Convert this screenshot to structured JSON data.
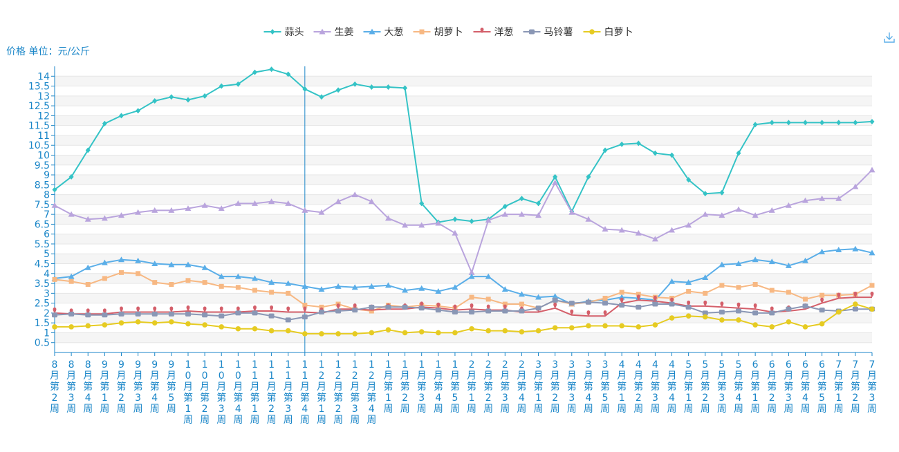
{
  "unit_label": "价格 单位：元/公斤",
  "chart_data": {
    "type": "line",
    "ylabel": "价格 单位：元/公斤",
    "ylim": [
      0,
      14.5
    ],
    "y_ticks": [
      0.5,
      1,
      1.5,
      2,
      2.5,
      3,
      3.5,
      4,
      4.5,
      5,
      5.5,
      6,
      6.5,
      7,
      7.5,
      8,
      8.5,
      9,
      9.5,
      10,
      10.5,
      11,
      11.5,
      12,
      12.5,
      13,
      13.5,
      14
    ],
    "y_tick_labels": [
      "0.5",
      "1",
      "1.5",
      "2",
      "2.5",
      "3",
      "3.5",
      "4",
      "4.5",
      "5",
      "5.5",
      "6",
      "6.5",
      "7",
      "7.5",
      "8",
      "8.5",
      "9",
      "9.5",
      "10",
      "10.5",
      "11",
      "11.5",
      "12",
      "12.5",
      "13",
      "13.5",
      "14"
    ],
    "grid": true,
    "legend_position": "top-center",
    "highlight_category": "11月第4周",
    "categories": [
      "8月第2周",
      "8月第3周",
      "8月第4周",
      "9月第1周",
      "9月第2周",
      "9月第3周",
      "9月第4周",
      "9月第5周",
      "10月第1周",
      "10月第2周",
      "10月第3周",
      "10月第4周",
      "11月第1周",
      "11月第2周",
      "11月第3周",
      "11月第4周",
      "12月第1周",
      "12月第2周",
      "12月第3周",
      "12月第4周",
      "1月第1周",
      "1月第2周",
      "1月第3周",
      "1月第4周",
      "1月第5周",
      "2月第1周",
      "2月第2周",
      "2月第3周",
      "2月第4周",
      "3月第1周",
      "3月第2周",
      "3月第3周",
      "3月第4周",
      "3月第5周",
      "4月第1周",
      "4月第2周",
      "4月第3周",
      "4月第4周",
      "5月第1周",
      "5月第2周",
      "5月第3周",
      "5月第4周",
      "6月第1周",
      "6月第2周",
      "6月第3周",
      "6月第4周",
      "6月第5周",
      "7月第1周",
      "7月第2周",
      "7月第3周"
    ],
    "series": [
      {
        "name": "蒜头",
        "color": "#34c3c6",
        "marker": "diamond",
        "values": [
          8.25,
          8.9,
          10.25,
          11.6,
          12.0,
          12.25,
          12.75,
          12.95,
          12.8,
          13.0,
          13.5,
          13.6,
          14.2,
          14.35,
          14.1,
          13.35,
          12.95,
          13.3,
          13.6,
          13.45,
          13.45,
          13.4,
          7.55,
          6.6,
          6.75,
          6.65,
          6.75,
          7.4,
          7.8,
          7.55,
          8.9,
          7.15,
          8.9,
          10.25,
          10.55,
          10.6,
          10.1,
          10.0,
          8.75,
          8.05,
          8.1,
          10.1,
          11.55,
          11.65,
          11.65,
          11.65,
          11.65,
          11.65,
          11.65,
          11.7
        ]
      },
      {
        "name": "生姜",
        "color": "#b9a4dd",
        "marker": "triangle",
        "values": [
          7.45,
          7.0,
          6.75,
          6.8,
          6.95,
          7.1,
          7.2,
          7.2,
          7.3,
          7.45,
          7.3,
          7.55,
          7.55,
          7.65,
          7.55,
          7.2,
          7.1,
          7.65,
          8.0,
          7.65,
          6.8,
          6.45,
          6.45,
          6.55,
          6.05,
          4.05,
          6.7,
          7.0,
          7.0,
          6.95,
          8.6,
          7.1,
          6.75,
          6.25,
          6.2,
          6.05,
          5.75,
          6.2,
          6.45,
          7.0,
          6.95,
          7.25,
          6.95,
          7.2,
          7.45,
          7.7,
          7.8,
          7.8,
          8.4,
          9.25
        ]
      },
      {
        "name": "大葱",
        "color": "#5aaee8",
        "marker": "triangle",
        "values": [
          3.75,
          3.85,
          4.3,
          4.55,
          4.7,
          4.65,
          4.5,
          4.45,
          4.45,
          4.3,
          3.85,
          3.85,
          3.75,
          3.55,
          3.5,
          3.35,
          3.2,
          3.35,
          3.3,
          3.35,
          3.4,
          3.15,
          3.25,
          3.1,
          3.3,
          3.85,
          3.85,
          3.2,
          2.95,
          2.8,
          2.85,
          2.45,
          2.6,
          2.65,
          2.8,
          2.75,
          2.65,
          3.6,
          3.55,
          3.8,
          4.45,
          4.5,
          4.7,
          4.6,
          4.4,
          4.65,
          5.1,
          5.2,
          5.25,
          5.05
        ]
      },
      {
        "name": "胡萝卜",
        "color": "#f7b883",
        "marker": "square",
        "values": [
          3.7,
          3.6,
          3.45,
          3.75,
          4.05,
          4.0,
          3.55,
          3.45,
          3.65,
          3.55,
          3.35,
          3.3,
          3.15,
          3.05,
          3.0,
          2.4,
          2.3,
          2.45,
          2.2,
          2.1,
          2.4,
          2.3,
          2.4,
          2.35,
          2.25,
          2.8,
          2.7,
          2.45,
          2.45,
          2.25,
          2.65,
          2.45,
          2.55,
          2.75,
          3.05,
          2.95,
          2.8,
          2.75,
          3.1,
          3.0,
          3.4,
          3.3,
          3.45,
          3.15,
          3.05,
          2.7,
          2.9,
          2.9,
          2.95,
          3.4
        ]
      },
      {
        "name": "洋葱",
        "color": "#d45f6a",
        "marker": "pin",
        "values": [
          2.0,
          1.95,
          1.95,
          1.95,
          2.05,
          2.05,
          2.05,
          2.05,
          2.1,
          2.05,
          2.05,
          2.05,
          2.1,
          2.1,
          2.05,
          2.05,
          2.0,
          2.2,
          2.2,
          2.15,
          2.2,
          2.2,
          2.3,
          2.25,
          2.15,
          2.2,
          2.15,
          2.15,
          2.05,
          2.05,
          2.25,
          1.9,
          1.85,
          1.85,
          2.5,
          2.65,
          2.6,
          2.5,
          2.35,
          2.35,
          2.3,
          2.25,
          2.2,
          2.05,
          2.1,
          2.2,
          2.5,
          2.75,
          2.8,
          2.8
        ]
      },
      {
        "name": "马铃薯",
        "color": "#8a97b5",
        "marker": "roundrect",
        "values": [
          1.9,
          1.95,
          1.9,
          1.9,
          1.95,
          1.95,
          1.95,
          1.95,
          1.95,
          1.9,
          1.85,
          2.0,
          2.0,
          1.85,
          1.65,
          1.8,
          2.05,
          2.1,
          2.15,
          2.3,
          2.3,
          2.3,
          2.25,
          2.15,
          2.05,
          2.05,
          2.1,
          2.1,
          2.1,
          2.25,
          2.65,
          2.5,
          2.55,
          2.5,
          2.4,
          2.3,
          2.45,
          2.45,
          2.3,
          2.0,
          2.05,
          2.1,
          2.0,
          2.0,
          2.2,
          2.35,
          2.15,
          2.1,
          2.2,
          2.2
        ]
      },
      {
        "name": "白萝卜",
        "color": "#e6cb22",
        "marker": "circle",
        "values": [
          1.3,
          1.3,
          1.35,
          1.4,
          1.5,
          1.55,
          1.5,
          1.55,
          1.45,
          1.4,
          1.3,
          1.2,
          1.2,
          1.1,
          1.1,
          0.95,
          0.95,
          0.95,
          0.95,
          1.0,
          1.15,
          1.0,
          1.05,
          1.0,
          1.0,
          1.2,
          1.1,
          1.1,
          1.05,
          1.1,
          1.25,
          1.25,
          1.35,
          1.35,
          1.35,
          1.3,
          1.4,
          1.75,
          1.85,
          1.8,
          1.65,
          1.65,
          1.4,
          1.3,
          1.55,
          1.3,
          1.45,
          2.05,
          2.45,
          2.2
        ]
      }
    ]
  }
}
